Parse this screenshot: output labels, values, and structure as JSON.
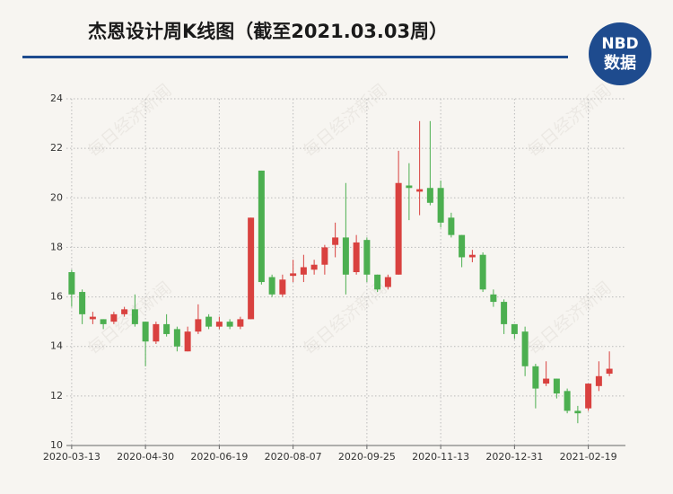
{
  "chart_data": {
    "type": "candlestick",
    "title": "杰恩设计周K线图（截至2021.03.03周）",
    "logo": {
      "top": "NBD",
      "bottom": "数据"
    },
    "watermark": "每日经济新闻",
    "categories": [
      "2020-03-13",
      null,
      null,
      null,
      null,
      null,
      null,
      "2020-04-30",
      null,
      null,
      null,
      null,
      null,
      null,
      "2020-06-19",
      null,
      null,
      null,
      null,
      null,
      null,
      "2020-08-07",
      null,
      null,
      null,
      null,
      null,
      null,
      "2020-09-25",
      null,
      null,
      null,
      null,
      null,
      null,
      "2020-11-13",
      null,
      null,
      null,
      null,
      null,
      null,
      "2020-12-31",
      null,
      null,
      null,
      null,
      null,
      null,
      "2021-02-19",
      null,
      null
    ],
    "open": [
      17.0,
      16.2,
      15.1,
      15.1,
      15.0,
      15.3,
      15.5,
      15.0,
      14.2,
      14.9,
      14.7,
      13.8,
      14.6,
      15.2,
      14.8,
      15.0,
      14.8,
      15.1,
      21.1,
      16.8,
      16.1,
      16.85,
      16.9,
      17.1,
      17.3,
      18.1,
      18.4,
      17.0,
      18.3,
      16.9,
      16.4,
      16.9,
      20.5,
      20.25,
      20.4,
      20.4,
      19.2,
      18.5,
      17.6,
      17.7,
      16.1,
      15.8,
      14.9,
      14.6,
      13.2,
      12.5,
      12.7,
      12.2,
      11.4,
      11.5,
      12.4,
      12.9
    ],
    "high": [
      17.1,
      16.3,
      15.4,
      15.1,
      15.4,
      15.6,
      16.1,
      15.0,
      15.0,
      15.3,
      14.8,
      14.8,
      15.7,
      15.3,
      15.2,
      15.1,
      15.2,
      19.2,
      21.1,
      16.9,
      16.9,
      17.5,
      17.7,
      17.5,
      18.1,
      19.0,
      20.6,
      18.5,
      18.4,
      16.9,
      16.9,
      21.9,
      21.4,
      23.1,
      23.1,
      20.7,
      19.4,
      18.5,
      17.9,
      17.8,
      16.3,
      15.9,
      14.9,
      14.8,
      13.3,
      13.4,
      12.7,
      12.3,
      11.6,
      12.5,
      13.4,
      13.8
    ],
    "low": [
      15.6,
      14.9,
      14.9,
      14.7,
      14.9,
      15.2,
      14.8,
      13.2,
      14.1,
      14.4,
      13.8,
      13.8,
      14.5,
      14.7,
      14.7,
      14.7,
      14.7,
      15.1,
      16.5,
      16.0,
      16.0,
      16.6,
      16.6,
      16.9,
      16.9,
      17.6,
      16.1,
      16.9,
      16.6,
      16.2,
      16.3,
      16.9,
      19.1,
      19.3,
      19.7,
      18.8,
      18.4,
      17.2,
      17.4,
      16.2,
      15.6,
      14.5,
      14.3,
      12.8,
      11.5,
      12.4,
      11.9,
      11.3,
      10.9,
      11.4,
      12.2,
      12.8
    ],
    "close": [
      16.1,
      15.3,
      15.2,
      14.9,
      15.3,
      15.5,
      14.9,
      14.2,
      14.9,
      14.5,
      14.0,
      14.6,
      15.1,
      14.8,
      15.0,
      14.8,
      15.1,
      19.2,
      16.6,
      16.1,
      16.7,
      16.95,
      17.2,
      17.3,
      18.0,
      18.4,
      16.9,
      18.2,
      16.9,
      16.3,
      16.8,
      20.6,
      20.4,
      20.35,
      19.8,
      19.0,
      18.5,
      17.6,
      17.7,
      16.3,
      15.8,
      14.9,
      14.5,
      13.2,
      12.3,
      12.7,
      12.1,
      11.4,
      11.3,
      12.5,
      12.8,
      13.1
    ],
    "up_color": "#d9413f",
    "down_color": "#4caf50",
    "ylim": [
      10,
      24
    ],
    "yticks": [
      10,
      12,
      14,
      16,
      18,
      20,
      22,
      24
    ],
    "grid": true
  }
}
